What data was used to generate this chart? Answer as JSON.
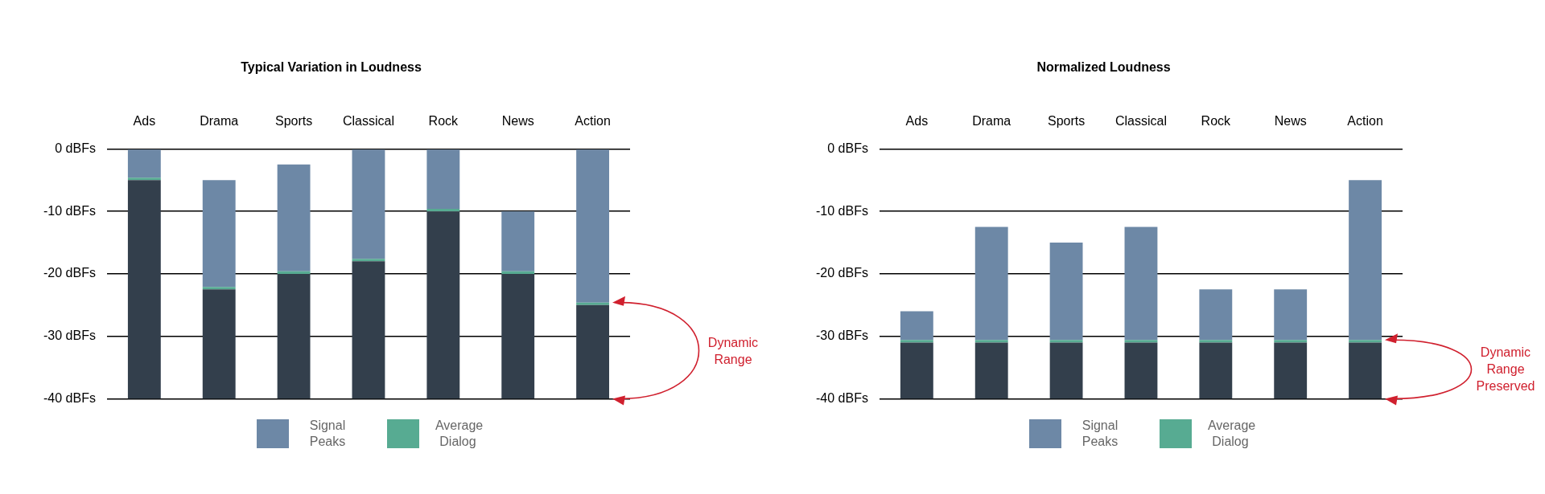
{
  "chart_data": [
    {
      "type": "bar",
      "title": "Typical Variation in Loudness",
      "categories": [
        "Ads",
        "Drama",
        "Sports",
        "Classical",
        "Rock",
        "News",
        "Action"
      ],
      "series": [
        {
          "color": "#333f4c",
          "base": [
            -40,
            -40,
            -40,
            -40,
            -40,
            -40,
            -40
          ],
          "values": [
            35,
            17.5,
            20,
            22,
            30,
            20,
            15
          ]
        },
        {
          "name": "Average Dialog",
          "color": "#57ab92",
          "base": [
            -5,
            -22.5,
            -20,
            -18,
            -10,
            -20,
            -25
          ],
          "values": [
            0.4,
            0.4,
            0.4,
            0.4,
            0.4,
            0.4,
            0.4
          ]
        },
        {
          "name": "Signal Peaks",
          "color": "#6d88a6",
          "base": [
            -4.6,
            -22.1,
            -19.6,
            -17.6,
            -9.6,
            -19.6,
            -24.6
          ],
          "values": [
            4.6,
            17.1,
            17.1,
            17.6,
            9.6,
            9.6,
            24.6
          ]
        }
      ],
      "ylim": [
        -40,
        0
      ],
      "yticks": [
        {
          "value": -40,
          "label": "-40 dBFs"
        },
        {
          "value": -30,
          "label": "-30 dBFs"
        },
        {
          "value": -20,
          "label": "-20 dBFs"
        },
        {
          "value": -10,
          "label": "-10 dBFs"
        },
        {
          "value": 0,
          "label": "0 dBFs"
        }
      ],
      "grid": "y",
      "legend": "bottom",
      "annotations": [
        "Dynamic Range"
      ]
    },
    {
      "type": "bar",
      "title": "Normalized Loudness",
      "categories": [
        "Ads",
        "Drama",
        "Sports",
        "Classical",
        "Rock",
        "News",
        "Action"
      ],
      "series": [
        {
          "color": "#333f4c",
          "base": [
            -40,
            -40,
            -40,
            -40,
            -40,
            -40,
            -40
          ],
          "values": [
            9,
            9,
            9,
            9,
            9,
            9,
            9
          ]
        },
        {
          "name": "Average Dialog",
          "color": "#57ab92",
          "base": [
            -31,
            -31,
            -31,
            -31,
            -31,
            -31,
            -31
          ],
          "values": [
            0.4,
            0.4,
            0.4,
            0.4,
            0.4,
            0.4,
            0.4
          ]
        },
        {
          "name": "Signal Peaks",
          "color": "#6d88a6",
          "base": [
            -30.6,
            -30.6,
            -30.6,
            -30.6,
            -30.6,
            -30.6,
            -30.6
          ],
          "values": [
            4.6,
            18.1,
            15.6,
            18.1,
            8.1,
            8.1,
            25.6
          ]
        }
      ],
      "ylim": [
        -40,
        0
      ],
      "yticks": [
        {
          "value": -40,
          "label": "-40 dBFs"
        },
        {
          "value": -30,
          "label": "-30 dBFs"
        },
        {
          "value": -20,
          "label": "-20 dBFs"
        },
        {
          "value": -10,
          "label": "-10 dBFs"
        },
        {
          "value": 0,
          "label": "0 dBFs"
        }
      ],
      "grid": "y",
      "legend": "bottom",
      "annotations": [
        "Dynamic Range Preserved"
      ]
    }
  ]
}
